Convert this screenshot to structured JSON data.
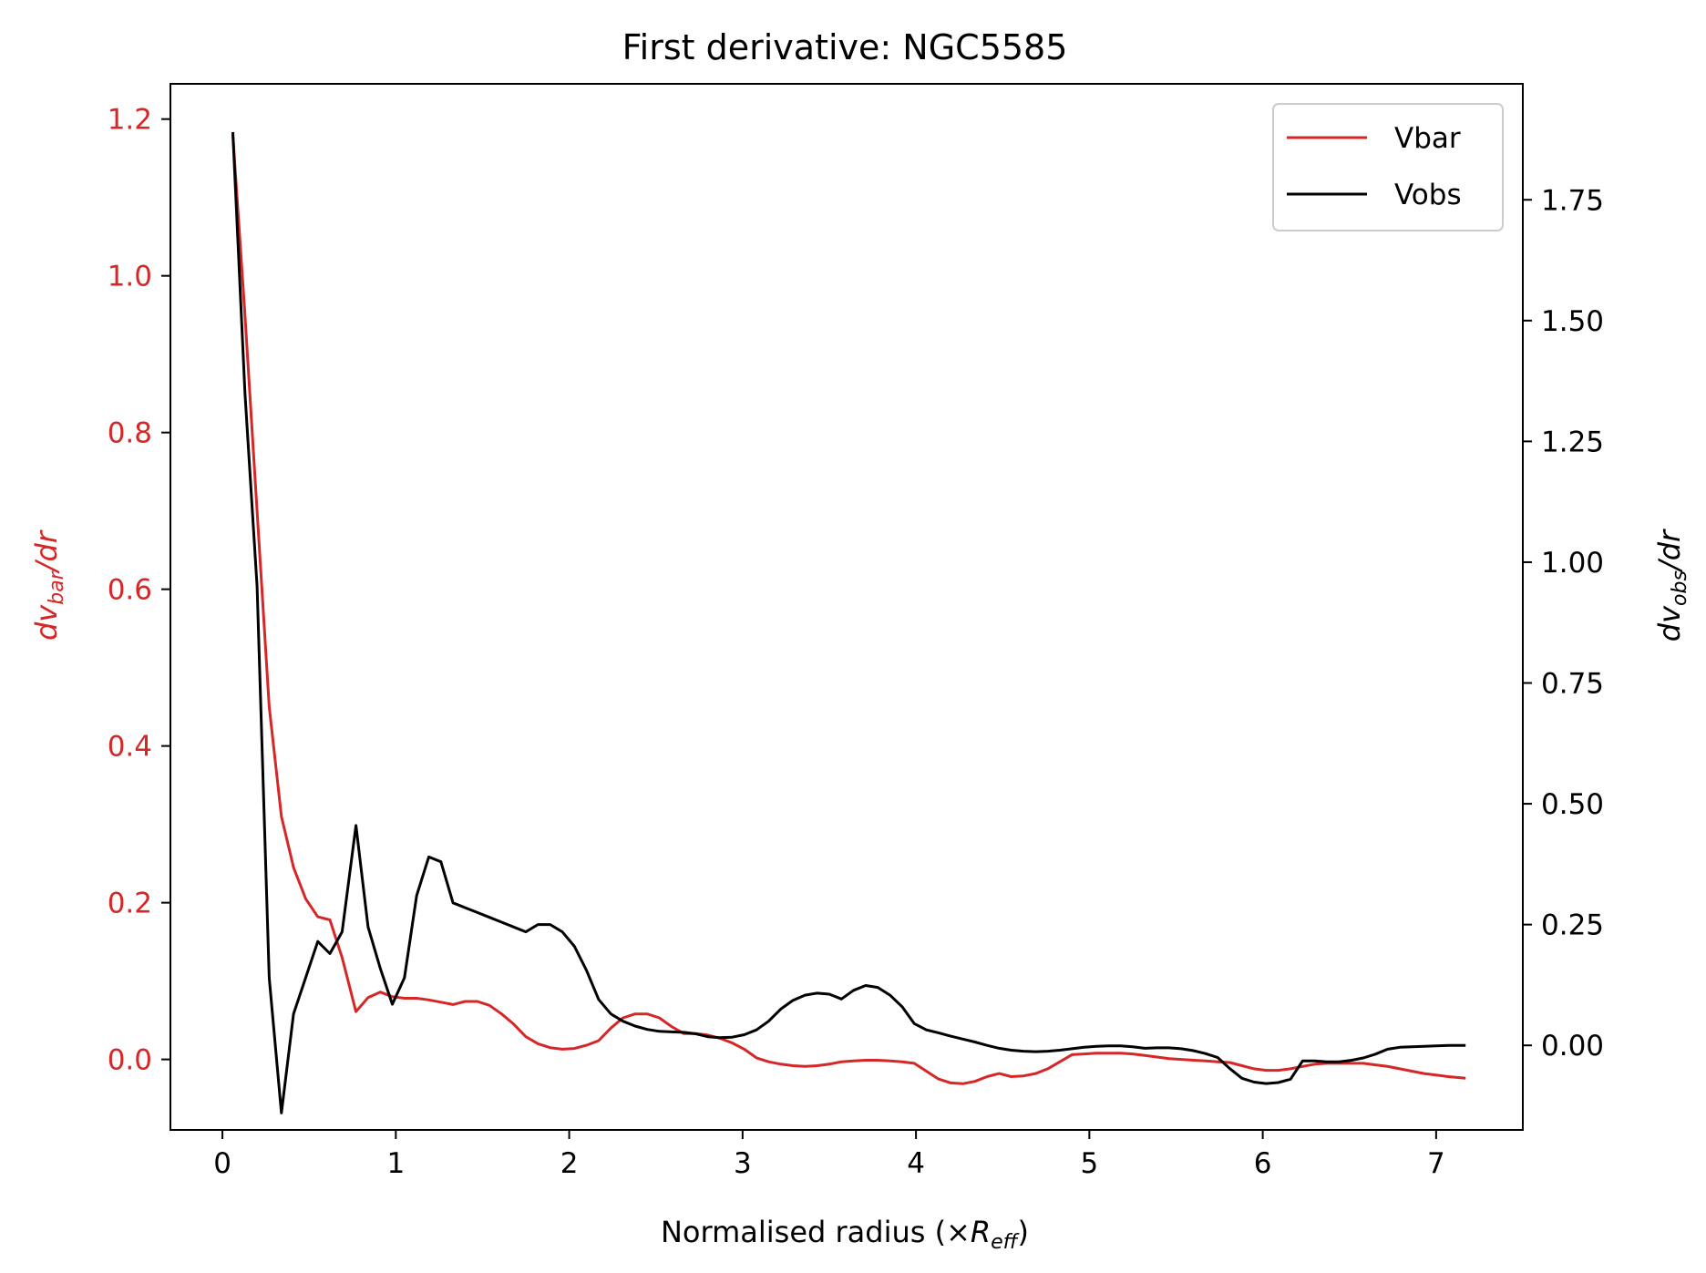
{
  "chart_data": {
    "type": "line",
    "title": "First derivative: NGC5585",
    "xlabel": "Normalised radius (×R_eff)",
    "xlabel_main": "Normalised radius (×",
    "xlabel_sym": "R",
    "xlabel_sub": "eff",
    "xlabel_close": ")",
    "ylabel_left": "dv_bar/dr",
    "ylabel_left_main": "dv",
    "ylabel_left_sub": "bar",
    "ylabel_left_tail": "/dr",
    "ylabel_right": "dv_obs/dr",
    "ylabel_right_main": "dv",
    "ylabel_right_sub": "obs",
    "ylabel_right_tail": "/dr",
    "xlim": [
      -0.3,
      7.5
    ],
    "ylim_left": [
      -0.09,
      1.245
    ],
    "ylim_right": [
      -0.175,
      1.99
    ],
    "x_ticks": [
      "0",
      "1",
      "2",
      "3",
      "4",
      "5",
      "6",
      "7"
    ],
    "y_left_ticks": [
      "0.0",
      "0.2",
      "0.4",
      "0.6",
      "0.8",
      "1.0",
      "1.2"
    ],
    "y_right_ticks": [
      "0.00",
      "0.25",
      "0.50",
      "0.75",
      "1.00",
      "1.25",
      "1.50",
      "1.75"
    ],
    "legend_position": "top-right",
    "grid": false,
    "colors": {
      "vbar": "#d62728",
      "vobs": "#000000",
      "left_axis": "#d62728",
      "right_axis": "#000000"
    },
    "series": [
      {
        "name": "Vbar",
        "axis": "left",
        "x": [
          0.06,
          0.13,
          0.2,
          0.27,
          0.34,
          0.41,
          0.48,
          0.55,
          0.62,
          0.69,
          0.77,
          0.84,
          0.91,
          0.98,
          1.05,
          1.12,
          1.19,
          1.26,
          1.33,
          1.4,
          1.47,
          1.54,
          1.61,
          1.68,
          1.75,
          1.82,
          1.89,
          1.96,
          2.03,
          2.1,
          2.17,
          2.24,
          2.31,
          2.38,
          2.45,
          2.52,
          2.59,
          2.66,
          2.73,
          2.8,
          2.87,
          2.94,
          3.01,
          3.08,
          3.15,
          3.22,
          3.29,
          3.36,
          3.43,
          3.5,
          3.57,
          3.64,
          3.71,
          3.78,
          3.85,
          3.92,
          3.99,
          4.06,
          4.13,
          4.2,
          4.27,
          4.34,
          4.41,
          4.48,
          4.55,
          4.62,
          4.69,
          4.76,
          4.83,
          4.9,
          4.97,
          5.04,
          5.11,
          5.18,
          5.25,
          5.32,
          5.39,
          5.46,
          5.53,
          5.6,
          5.67,
          5.74,
          5.81,
          5.88,
          5.95,
          6.02,
          6.09,
          6.16,
          6.23,
          6.3,
          6.37,
          6.44,
          6.51,
          6.58,
          6.65,
          6.72,
          6.79,
          6.86,
          6.93,
          7.0,
          7.07,
          7.17
        ],
        "values": [
          1.18,
          0.95,
          0.7,
          0.45,
          0.31,
          0.245,
          0.205,
          0.182,
          0.178,
          0.13,
          0.061,
          0.079,
          0.086,
          0.08,
          0.078,
          0.078,
          0.076,
          0.073,
          0.07,
          0.074,
          0.074,
          0.069,
          0.058,
          0.045,
          0.029,
          0.02,
          0.015,
          0.013,
          0.014,
          0.018,
          0.024,
          0.04,
          0.053,
          0.058,
          0.058,
          0.053,
          0.042,
          0.033,
          0.033,
          0.031,
          0.027,
          0.021,
          0.013,
          0.002,
          -0.003,
          -0.006,
          -0.008,
          -0.009,
          -0.008,
          -0.006,
          -0.003,
          -0.002,
          -0.001,
          -0.001,
          -0.002,
          -0.003,
          -0.005,
          -0.015,
          -0.025,
          -0.03,
          -0.031,
          -0.028,
          -0.022,
          -0.018,
          -0.022,
          -0.021,
          -0.018,
          -0.012,
          -0.003,
          0.006,
          0.007,
          0.008,
          0.008,
          0.008,
          0.007,
          0.005,
          0.003,
          0.001,
          0.0,
          -0.001,
          -0.002,
          -0.003,
          -0.004,
          -0.008,
          -0.012,
          -0.014,
          -0.014,
          -0.012,
          -0.009,
          -0.006,
          -0.005,
          -0.005,
          -0.005,
          -0.005,
          -0.007,
          -0.009,
          -0.012,
          -0.015,
          -0.018,
          -0.02,
          -0.022,
          -0.024
        ]
      },
      {
        "name": "Vobs",
        "axis": "right",
        "x": [
          0.06,
          0.13,
          0.2,
          0.27,
          0.34,
          0.41,
          0.48,
          0.55,
          0.62,
          0.69,
          0.77,
          0.84,
          0.91,
          0.98,
          1.05,
          1.12,
          1.19,
          1.26,
          1.33,
          1.4,
          1.47,
          1.54,
          1.61,
          1.68,
          1.75,
          1.82,
          1.89,
          1.96,
          2.03,
          2.1,
          2.17,
          2.24,
          2.31,
          2.38,
          2.45,
          2.52,
          2.59,
          2.66,
          2.73,
          2.8,
          2.87,
          2.94,
          3.01,
          3.08,
          3.15,
          3.22,
          3.29,
          3.36,
          3.43,
          3.5,
          3.57,
          3.64,
          3.71,
          3.78,
          3.85,
          3.92,
          3.99,
          4.06,
          4.13,
          4.2,
          4.27,
          4.34,
          4.41,
          4.48,
          4.55,
          4.62,
          4.69,
          4.76,
          4.83,
          4.9,
          4.97,
          5.04,
          5.11,
          5.18,
          5.25,
          5.32,
          5.39,
          5.46,
          5.53,
          5.6,
          5.67,
          5.74,
          5.81,
          5.88,
          5.95,
          6.02,
          6.09,
          6.16,
          6.23,
          6.3,
          6.37,
          6.44,
          6.51,
          6.58,
          6.65,
          6.72,
          6.79,
          6.86,
          6.93,
          7.0,
          7.07,
          7.17
        ],
        "values": [
          1.89,
          1.35,
          0.95,
          0.14,
          -0.14,
          0.065,
          0.14,
          0.215,
          0.19,
          0.235,
          0.455,
          0.245,
          0.16,
          0.085,
          0.14,
          0.31,
          0.39,
          0.38,
          0.295,
          0.285,
          0.275,
          0.265,
          0.255,
          0.245,
          0.235,
          0.25,
          0.25,
          0.235,
          0.205,
          0.155,
          0.095,
          0.065,
          0.05,
          0.04,
          0.033,
          0.029,
          0.028,
          0.027,
          0.024,
          0.018,
          0.016,
          0.017,
          0.022,
          0.032,
          0.05,
          0.075,
          0.093,
          0.104,
          0.108,
          0.106,
          0.096,
          0.114,
          0.124,
          0.12,
          0.104,
          0.08,
          0.045,
          0.032,
          0.026,
          0.019,
          0.013,
          0.007,
          0.0,
          -0.006,
          -0.01,
          -0.012,
          -0.013,
          -0.012,
          -0.01,
          -0.007,
          -0.004,
          -0.002,
          -0.001,
          -0.001,
          -0.003,
          -0.006,
          -0.005,
          -0.005,
          -0.007,
          -0.011,
          -0.017,
          -0.025,
          -0.048,
          -0.068,
          -0.076,
          -0.079,
          -0.077,
          -0.07,
          -0.032,
          -0.032,
          -0.034,
          -0.034,
          -0.031,
          -0.026,
          -0.018,
          -0.008,
          -0.004,
          -0.003,
          -0.002,
          -0.001,
          0.0,
          0.0
        ]
      }
    ]
  }
}
